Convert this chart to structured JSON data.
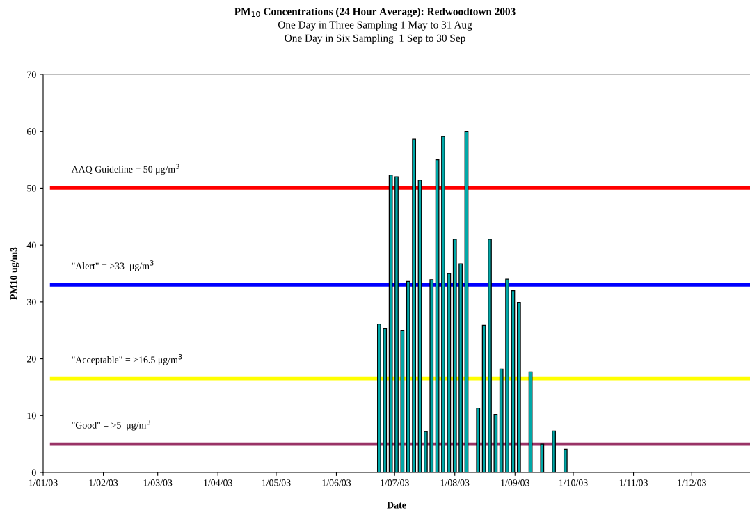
{
  "chart_data": {
    "type": "bar",
    "title": "PM$_{10}$ Concentrations (24 Hour Average): Redwoodtown 2003",
    "subtitle": "One Day in Three Sampling 1 May to 31 Aug\nOne Day in Six Sampling  1 Sep to 30 Sep",
    "xlabel": "Date",
    "ylabel": "PM10 ug/m3",
    "x": [
      "2003-06-23",
      "2003-06-26",
      "2003-06-29",
      "2003-07-02",
      "2003-07-05",
      "2003-07-08",
      "2003-07-11",
      "2003-07-14",
      "2003-07-17",
      "2003-07-20",
      "2003-07-23",
      "2003-07-26",
      "2003-07-29",
      "2003-08-01",
      "2003-08-04",
      "2003-08-07",
      "2003-08-13",
      "2003-08-16",
      "2003-08-19",
      "2003-08-22",
      "2003-08-25",
      "2003-08-28",
      "2003-08-31",
      "2003-09-03",
      "2003-09-09",
      "2003-09-15",
      "2003-09-21",
      "2003-09-27"
    ],
    "values": [
      26.1,
      25.3,
      52.3,
      52.0,
      25.0,
      33.6,
      58.6,
      51.4,
      7.2,
      33.9,
      55.0,
      59.1,
      35.0,
      41.0,
      36.7,
      60.0,
      11.3,
      25.9,
      41.0,
      10.2,
      18.2,
      34.0,
      32.0,
      29.9,
      17.7,
      5.0,
      7.3,
      4.1
    ],
    "color": "#00a8a8",
    "xlim": [
      "2003-01-01",
      "2003-12-31"
    ],
    "xticks": [
      {
        "value": "2003-01-01",
        "label": "1/01/03"
      },
      {
        "value": "2003-02-01",
        "label": "1/02/03"
      },
      {
        "value": "2003-03-01",
        "label": "1/03/03"
      },
      {
        "value": "2003-04-01",
        "label": "1/04/03"
      },
      {
        "value": "2003-05-01",
        "label": "1/05/03"
      },
      {
        "value": "2003-06-01",
        "label": "1/06/03"
      },
      {
        "value": "2003-07-01",
        "label": "1/07/03"
      },
      {
        "value": "2003-08-01",
        "label": "1/08/03"
      },
      {
        "value": "2003-09-01",
        "label": "1/09/03"
      },
      {
        "value": "2003-10-01",
        "label": "1/10/03"
      },
      {
        "value": "2003-11-01",
        "label": "1/11/03"
      },
      {
        "value": "2003-12-01",
        "label": "1/12/03"
      }
    ],
    "ylim": [
      0,
      70
    ],
    "yticks": [
      0,
      10,
      20,
      30,
      40,
      50,
      60,
      70
    ],
    "grid": false,
    "ref_lines": [
      {
        "axis": "y",
        "value": 50,
        "label": "AAQ Guideline = 50 μg/m$^{3}$",
        "color": "#ff0000"
      },
      {
        "axis": "y",
        "value": 33,
        "label": "\"Alert\" = >33  μg/m$^{3}$",
        "color": "#0000ff"
      },
      {
        "axis": "y",
        "value": 16.5,
        "label": "\"Acceptable\" = >16.5 μg/m$^{3}$",
        "color": "#ffff00"
      },
      {
        "axis": "y",
        "value": 5,
        "label": "\"Good\" = >5  μg/m$^{3}$",
        "color": "#993366"
      }
    ]
  }
}
